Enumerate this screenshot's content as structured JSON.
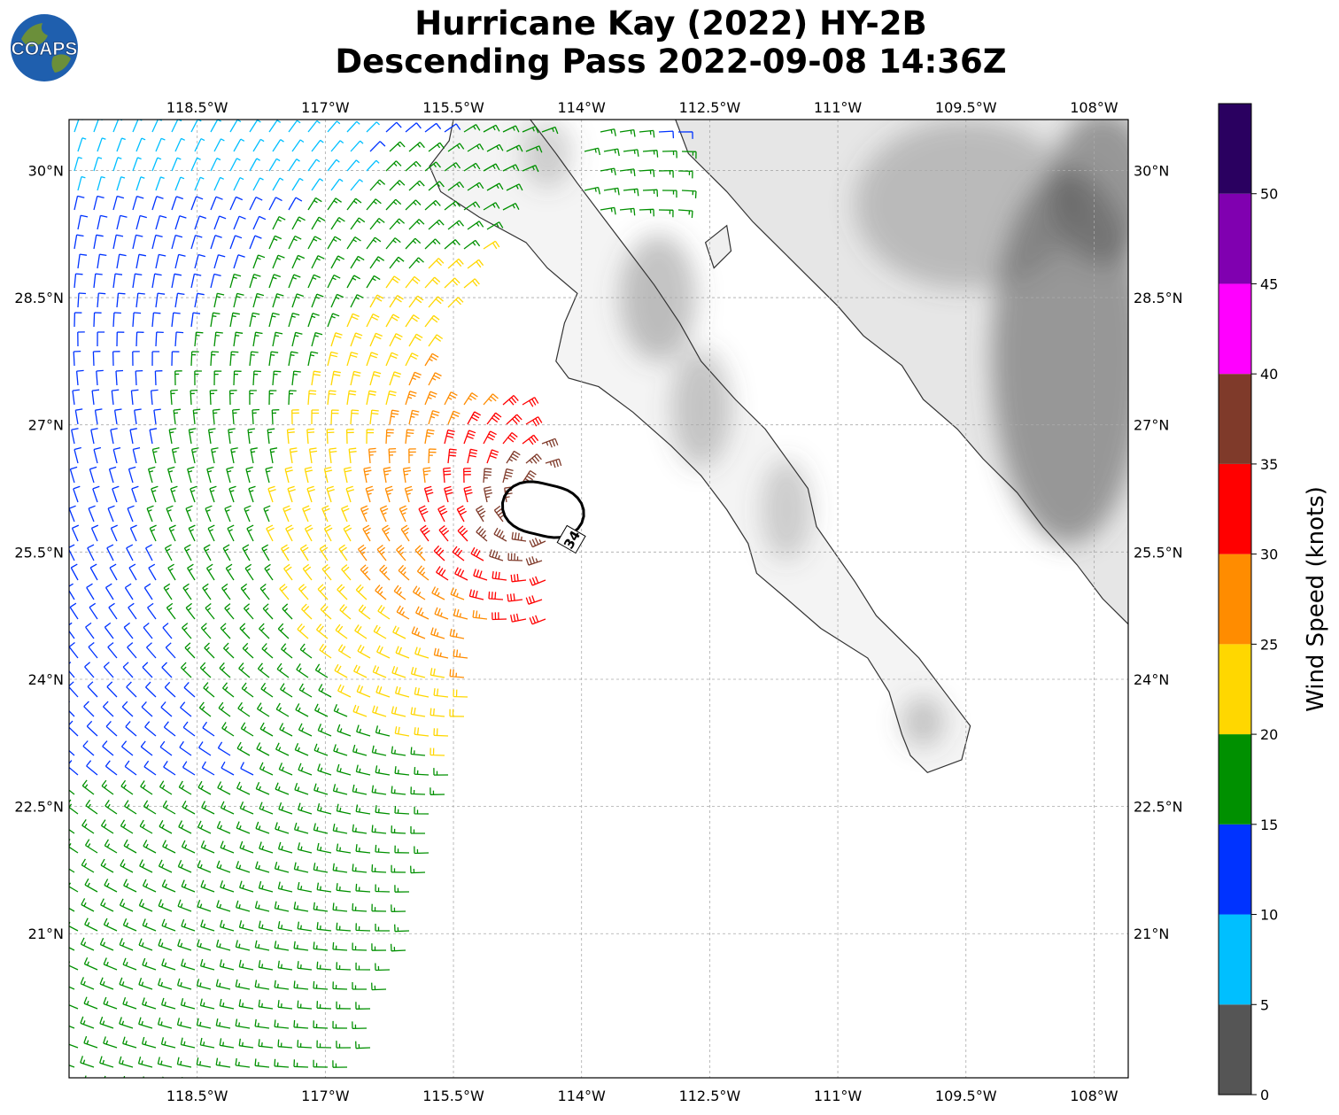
{
  "title_line1": "Hurricane Kay (2022) HY-2B",
  "title_line2": "Descending Pass 2022-09-08 14:36Z",
  "logo_text": "COAPS",
  "map": {
    "lon_range": [
      -120.0,
      -107.6
    ],
    "lat_range": [
      19.3,
      30.6
    ],
    "lon_ticks": [
      {
        "value": -118.5,
        "label": "118.5°W"
      },
      {
        "value": -117.0,
        "label": "117°W"
      },
      {
        "value": -115.5,
        "label": "115.5°W"
      },
      {
        "value": -114.0,
        "label": "114°W"
      },
      {
        "value": -112.5,
        "label": "112.5°W"
      },
      {
        "value": -111.0,
        "label": "111°W"
      },
      {
        "value": -109.5,
        "label": "109.5°W"
      },
      {
        "value": -108.0,
        "label": "108°W"
      }
    ],
    "lat_ticks": [
      {
        "value": 30.0,
        "label": "30°N"
      },
      {
        "value": 28.5,
        "label": "28.5°N"
      },
      {
        "value": 27.0,
        "label": "27°N"
      },
      {
        "value": 25.5,
        "label": "25.5°N"
      },
      {
        "value": 24.0,
        "label": "24°N"
      },
      {
        "value": 22.5,
        "label": "22.5°N"
      },
      {
        "value": 21.0,
        "label": "21°N"
      }
    ],
    "grid": true,
    "storm_center": {
      "lon": -114.45,
      "lat": 26.0
    },
    "contour_label": "34",
    "coastline_mainland": [
      [
        -115.5,
        30.6
      ],
      [
        -115.55,
        30.35
      ],
      [
        -115.78,
        30.05
      ],
      [
        -115.65,
        29.75
      ],
      [
        -115.2,
        29.45
      ],
      [
        -114.65,
        29.15
      ],
      [
        -114.4,
        28.85
      ],
      [
        -114.05,
        28.55
      ],
      [
        -114.2,
        28.2
      ],
      [
        -114.3,
        27.75
      ],
      [
        -114.15,
        27.55
      ],
      [
        -113.8,
        27.45
      ],
      [
        -113.4,
        27.15
      ],
      [
        -112.95,
        26.75
      ],
      [
        -112.6,
        26.4
      ],
      [
        -112.3,
        26.0
      ],
      [
        -112.05,
        25.6
      ],
      [
        -111.95,
        25.25
      ],
      [
        -111.6,
        24.95
      ],
      [
        -111.2,
        24.6
      ],
      [
        -110.65,
        24.25
      ],
      [
        -110.4,
        23.85
      ],
      [
        -110.25,
        23.35
      ],
      [
        -110.15,
        23.1
      ],
      [
        -109.95,
        22.9
      ],
      [
        -109.55,
        23.05
      ],
      [
        -109.45,
        23.45
      ],
      [
        -109.75,
        23.85
      ],
      [
        -110.05,
        24.25
      ],
      [
        -110.55,
        24.75
      ],
      [
        -110.8,
        25.15
      ],
      [
        -111.25,
        25.8
      ],
      [
        -111.35,
        26.25
      ],
      [
        -111.85,
        26.95
      ],
      [
        -112.2,
        27.3
      ],
      [
        -112.6,
        27.75
      ],
      [
        -112.85,
        28.2
      ],
      [
        -113.15,
        28.65
      ],
      [
        -113.45,
        29.05
      ],
      [
        -113.75,
        29.45
      ],
      [
        -114.05,
        29.85
      ],
      [
        -114.3,
        30.2
      ],
      [
        -114.6,
        30.6
      ]
    ],
    "coastline_east": [
      [
        -112.9,
        30.6
      ],
      [
        -112.75,
        30.2
      ],
      [
        -112.3,
        29.75
      ],
      [
        -112.0,
        29.4
      ],
      [
        -111.65,
        29.05
      ],
      [
        -111.3,
        28.7
      ],
      [
        -111.0,
        28.4
      ],
      [
        -110.7,
        28.05
      ],
      [
        -110.25,
        27.7
      ],
      [
        -110.0,
        27.3
      ],
      [
        -109.6,
        26.95
      ],
      [
        -109.3,
        26.6
      ],
      [
        -108.9,
        26.2
      ],
      [
        -108.6,
        25.8
      ],
      [
        -108.2,
        25.35
      ],
      [
        -107.9,
        24.95
      ],
      [
        -107.6,
        24.65
      ]
    ],
    "coastline_island": [
      [
        -112.55,
        29.15
      ],
      [
        -112.3,
        29.35
      ],
      [
        -112.25,
        29.05
      ],
      [
        -112.45,
        28.85
      ]
    ],
    "terrain": [
      {
        "lon": -113.1,
        "lat": 28.5,
        "rx": 0.45,
        "ry": 0.75,
        "opacity": 0.35
      },
      {
        "lon": -112.6,
        "lat": 27.2,
        "rx": 0.35,
        "ry": 0.7,
        "opacity": 0.3
      },
      {
        "lon": -111.6,
        "lat": 26.0,
        "rx": 0.3,
        "ry": 0.6,
        "opacity": 0.25
      },
      {
        "lon": -110.0,
        "lat": 23.5,
        "rx": 0.25,
        "ry": 0.3,
        "opacity": 0.3
      },
      {
        "lon": -108.3,
        "lat": 27.8,
        "rx": 0.9,
        "ry": 2.2,
        "opacity": 0.55
      },
      {
        "lon": -109.5,
        "lat": 29.6,
        "rx": 1.3,
        "ry": 1.0,
        "opacity": 0.3
      },
      {
        "lon": -107.9,
        "lat": 29.8,
        "rx": 0.6,
        "ry": 0.9,
        "opacity": 0.55
      },
      {
        "lon": -114.4,
        "lat": 30.2,
        "rx": 0.3,
        "ry": 0.4,
        "opacity": 0.25
      }
    ]
  },
  "colorbar": {
    "label": "Wind Speed (knots)",
    "bins": [
      {
        "from": 0,
        "to": 5,
        "color": "#555555"
      },
      {
        "from": 5,
        "to": 10,
        "color": "#00bfff"
      },
      {
        "from": 10,
        "to": 15,
        "color": "#0033ff"
      },
      {
        "from": 15,
        "to": 20,
        "color": "#009000"
      },
      {
        "from": 20,
        "to": 25,
        "color": "#ffd700"
      },
      {
        "from": 25,
        "to": 30,
        "color": "#ff8c00"
      },
      {
        "from": 30,
        "to": 35,
        "color": "#ff0000"
      },
      {
        "from": 35,
        "to": 40,
        "color": "#7f3a2a"
      },
      {
        "from": 40,
        "to": 45,
        "color": "#ff00ff"
      },
      {
        "from": 45,
        "to": 50,
        "color": "#8000b0"
      },
      {
        "from": 50,
        "to": 55,
        "color": "#2a0060"
      }
    ],
    "ticks": [
      {
        "value": 0,
        "label": "0"
      },
      {
        "value": 5,
        "label": "5"
      },
      {
        "value": 10,
        "label": "10"
      },
      {
        "value": 15,
        "label": "15"
      },
      {
        "value": 20,
        "label": "20"
      },
      {
        "value": 25,
        "label": "25"
      },
      {
        "value": 30,
        "label": "30"
      },
      {
        "value": 35,
        "label": "35"
      },
      {
        "value": 40,
        "label": "40"
      },
      {
        "value": 45,
        "label": "45"
      },
      {
        "value": 50,
        "label": "50"
      }
    ]
  }
}
